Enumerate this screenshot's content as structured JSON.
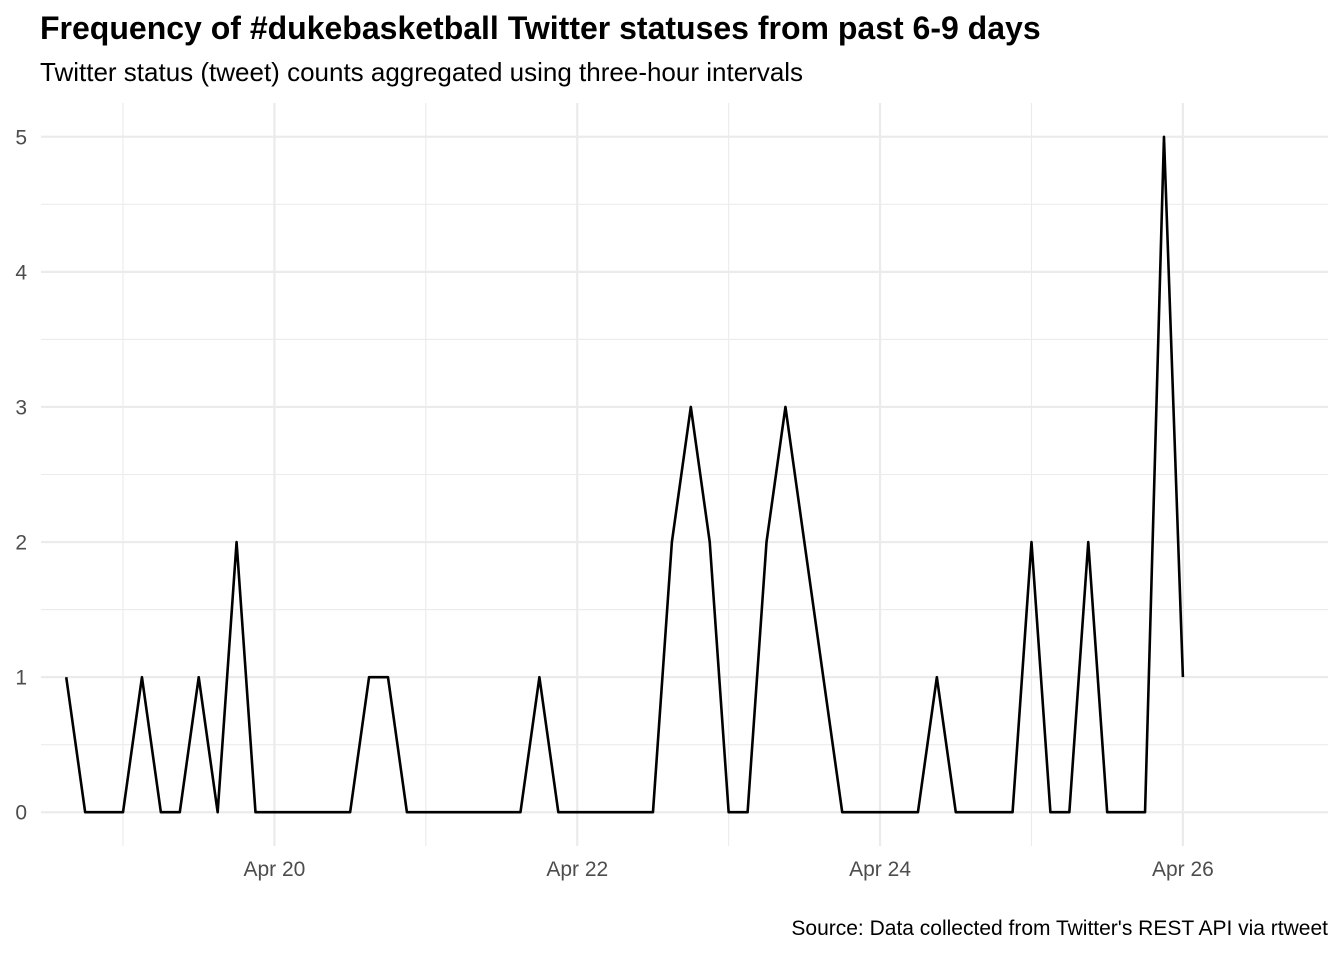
{
  "chart_data": {
    "type": "line",
    "title": "Frequency of #dukebasketball Twitter statuses from past 6-9 days",
    "subtitle": "Twitter status (tweet) counts aggregated using three-hour intervals",
    "caption": "Source: Data collected from Twitter's REST API via rtweet",
    "xlabel": "",
    "ylabel": "",
    "interval_hours": 3,
    "x_start": "2018-04-18 15:00",
    "y_ticks": [
      0,
      1,
      2,
      3,
      4,
      5
    ],
    "ylim": [
      0,
      5
    ],
    "x_ticks": [
      {
        "label": "Apr 20",
        "date": "2018-04-20 00:00"
      },
      {
        "label": "Apr 22",
        "date": "2018-04-22 00:00"
      },
      {
        "label": "Apr 24",
        "date": "2018-04-24 00:00"
      },
      {
        "label": "Apr 26",
        "date": "2018-04-26 00:00"
      }
    ],
    "xlim": [
      "2018-04-18 11:00",
      "2018-04-26 23:00"
    ],
    "grid": true,
    "series": [
      {
        "color": "#000000",
        "values": [
          1,
          0,
          0,
          0,
          1,
          0,
          0,
          1,
          0,
          2,
          0,
          0,
          0,
          0,
          0,
          0,
          1,
          1,
          0,
          0,
          0,
          0,
          0,
          0,
          0,
          1,
          0,
          0,
          0,
          0,
          0,
          0,
          2,
          3,
          2,
          0,
          0,
          2,
          3,
          2,
          1,
          0,
          0,
          0,
          0,
          0,
          1,
          0,
          0,
          0,
          0,
          2,
          0,
          0,
          2,
          0,
          0,
          0,
          5,
          1
        ]
      }
    ]
  }
}
